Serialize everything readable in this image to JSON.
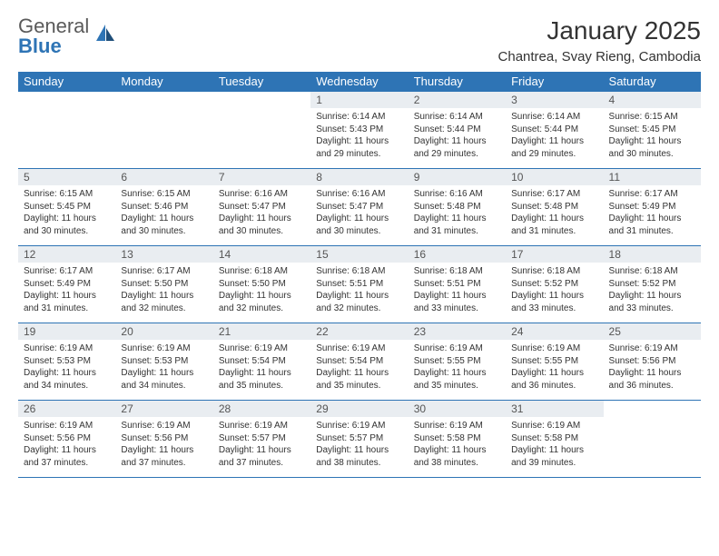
{
  "logo": {
    "text1": "General",
    "text2": "Blue"
  },
  "title": "January 2025",
  "location": "Chantrea, Svay Rieng, Cambodia",
  "colors": {
    "header_bg": "#2e74b5",
    "header_text": "#ffffff",
    "daynum_bg": "#e9edf1",
    "border": "#2e74b5",
    "text": "#333333"
  },
  "weekdays": [
    "Sunday",
    "Monday",
    "Tuesday",
    "Wednesday",
    "Thursday",
    "Friday",
    "Saturday"
  ],
  "weeks": [
    [
      null,
      null,
      null,
      {
        "n": "1",
        "sr": "6:14 AM",
        "ss": "5:43 PM",
        "dl": "11 hours and 29 minutes."
      },
      {
        "n": "2",
        "sr": "6:14 AM",
        "ss": "5:44 PM",
        "dl": "11 hours and 29 minutes."
      },
      {
        "n": "3",
        "sr": "6:14 AM",
        "ss": "5:44 PM",
        "dl": "11 hours and 29 minutes."
      },
      {
        "n": "4",
        "sr": "6:15 AM",
        "ss": "5:45 PM",
        "dl": "11 hours and 30 minutes."
      }
    ],
    [
      {
        "n": "5",
        "sr": "6:15 AM",
        "ss": "5:45 PM",
        "dl": "11 hours and 30 minutes."
      },
      {
        "n": "6",
        "sr": "6:15 AM",
        "ss": "5:46 PM",
        "dl": "11 hours and 30 minutes."
      },
      {
        "n": "7",
        "sr": "6:16 AM",
        "ss": "5:47 PM",
        "dl": "11 hours and 30 minutes."
      },
      {
        "n": "8",
        "sr": "6:16 AM",
        "ss": "5:47 PM",
        "dl": "11 hours and 30 minutes."
      },
      {
        "n": "9",
        "sr": "6:16 AM",
        "ss": "5:48 PM",
        "dl": "11 hours and 31 minutes."
      },
      {
        "n": "10",
        "sr": "6:17 AM",
        "ss": "5:48 PM",
        "dl": "11 hours and 31 minutes."
      },
      {
        "n": "11",
        "sr": "6:17 AM",
        "ss": "5:49 PM",
        "dl": "11 hours and 31 minutes."
      }
    ],
    [
      {
        "n": "12",
        "sr": "6:17 AM",
        "ss": "5:49 PM",
        "dl": "11 hours and 31 minutes."
      },
      {
        "n": "13",
        "sr": "6:17 AM",
        "ss": "5:50 PM",
        "dl": "11 hours and 32 minutes."
      },
      {
        "n": "14",
        "sr": "6:18 AM",
        "ss": "5:50 PM",
        "dl": "11 hours and 32 minutes."
      },
      {
        "n": "15",
        "sr": "6:18 AM",
        "ss": "5:51 PM",
        "dl": "11 hours and 32 minutes."
      },
      {
        "n": "16",
        "sr": "6:18 AM",
        "ss": "5:51 PM",
        "dl": "11 hours and 33 minutes."
      },
      {
        "n": "17",
        "sr": "6:18 AM",
        "ss": "5:52 PM",
        "dl": "11 hours and 33 minutes."
      },
      {
        "n": "18",
        "sr": "6:18 AM",
        "ss": "5:52 PM",
        "dl": "11 hours and 33 minutes."
      }
    ],
    [
      {
        "n": "19",
        "sr": "6:19 AM",
        "ss": "5:53 PM",
        "dl": "11 hours and 34 minutes."
      },
      {
        "n": "20",
        "sr": "6:19 AM",
        "ss": "5:53 PM",
        "dl": "11 hours and 34 minutes."
      },
      {
        "n": "21",
        "sr": "6:19 AM",
        "ss": "5:54 PM",
        "dl": "11 hours and 35 minutes."
      },
      {
        "n": "22",
        "sr": "6:19 AM",
        "ss": "5:54 PM",
        "dl": "11 hours and 35 minutes."
      },
      {
        "n": "23",
        "sr": "6:19 AM",
        "ss": "5:55 PM",
        "dl": "11 hours and 35 minutes."
      },
      {
        "n": "24",
        "sr": "6:19 AM",
        "ss": "5:55 PM",
        "dl": "11 hours and 36 minutes."
      },
      {
        "n": "25",
        "sr": "6:19 AM",
        "ss": "5:56 PM",
        "dl": "11 hours and 36 minutes."
      }
    ],
    [
      {
        "n": "26",
        "sr": "6:19 AM",
        "ss": "5:56 PM",
        "dl": "11 hours and 37 minutes."
      },
      {
        "n": "27",
        "sr": "6:19 AM",
        "ss": "5:56 PM",
        "dl": "11 hours and 37 minutes."
      },
      {
        "n": "28",
        "sr": "6:19 AM",
        "ss": "5:57 PM",
        "dl": "11 hours and 37 minutes."
      },
      {
        "n": "29",
        "sr": "6:19 AM",
        "ss": "5:57 PM",
        "dl": "11 hours and 38 minutes."
      },
      {
        "n": "30",
        "sr": "6:19 AM",
        "ss": "5:58 PM",
        "dl": "11 hours and 38 minutes."
      },
      {
        "n": "31",
        "sr": "6:19 AM",
        "ss": "5:58 PM",
        "dl": "11 hours and 39 minutes."
      },
      null
    ]
  ],
  "labels": {
    "sunrise": "Sunrise: ",
    "sunset": "Sunset: ",
    "daylight": "Daylight: "
  }
}
